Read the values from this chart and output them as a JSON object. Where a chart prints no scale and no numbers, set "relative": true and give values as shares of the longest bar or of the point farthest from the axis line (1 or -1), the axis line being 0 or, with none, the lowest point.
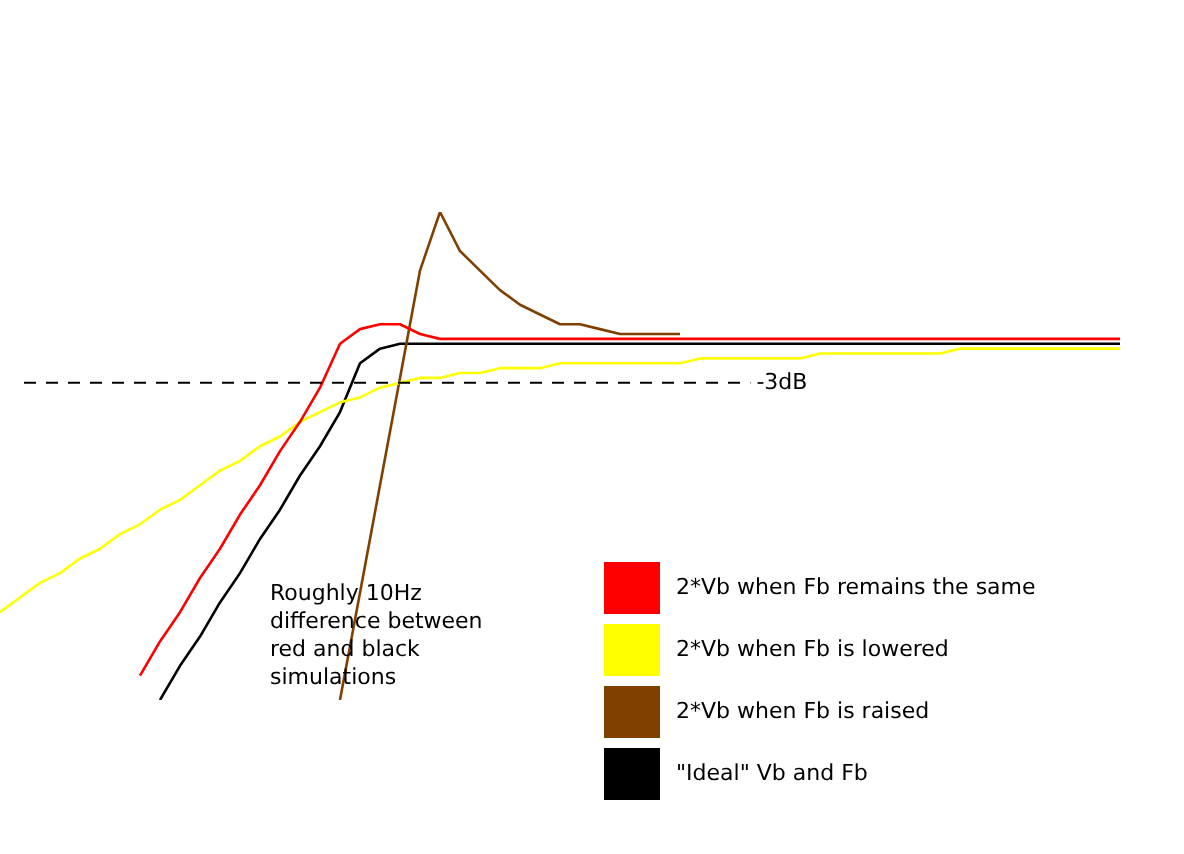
{
  "chart_data": {
    "type": "line",
    "relative": true,
    "marker": "none",
    "legend": "bottom right",
    "categories": [
      null,
      null,
      null,
      null,
      null,
      null,
      null,
      null,
      null,
      null,
      null,
      null,
      null,
      null,
      null,
      null,
      null,
      null,
      null,
      null,
      null,
      null,
      null,
      null,
      null,
      null,
      null,
      null,
      null,
      null,
      null,
      null,
      null,
      null,
      null,
      null,
      null,
      null,
      null,
      null,
      null,
      null,
      null,
      null,
      null,
      null,
      null,
      null,
      null,
      null,
      null,
      null,
      null,
      null,
      null,
      null,
      null
    ],
    "series": [
      {
        "name": "2*Vb when Fb remains the same",
        "color": "#ff0000",
        "values": [
          null,
          null,
          null,
          null,
          null,
          null,
          null,
          0.05,
          0.12,
          0.18,
          0.25,
          0.31,
          0.38,
          0.44,
          0.51,
          0.57,
          0.64,
          0.73,
          0.76,
          0.77,
          0.77,
          0.75,
          0.74,
          0.74,
          0.74,
          0.74,
          0.74,
          0.74,
          0.74,
          0.74,
          0.74,
          0.74,
          0.74,
          0.74,
          0.74,
          0.74,
          0.74,
          0.74,
          0.74,
          0.74,
          0.74,
          0.74,
          0.74,
          0.74,
          0.74,
          0.74,
          0.74,
          0.74,
          0.74,
          0.74,
          0.74,
          0.74,
          0.74,
          0.74,
          0.74,
          0.74,
          0.74
        ]
      },
      {
        "name": "2*Vb when Fb is lowered",
        "color": "#ffff00",
        "values": [
          0.18,
          0.21,
          0.24,
          0.26,
          0.29,
          0.31,
          0.34,
          0.36,
          0.39,
          0.41,
          0.44,
          0.47,
          0.49,
          0.52,
          0.54,
          0.57,
          0.59,
          0.61,
          0.62,
          0.64,
          0.65,
          0.66,
          0.66,
          0.67,
          0.67,
          0.68,
          0.68,
          0.68,
          0.69,
          0.69,
          0.69,
          0.69,
          0.69,
          0.69,
          0.69,
          0.7,
          0.7,
          0.7,
          0.7,
          0.7,
          0.7,
          0.71,
          0.71,
          0.71,
          0.71,
          0.71,
          0.71,
          0.71,
          0.72,
          0.72,
          0.72,
          0.72,
          0.72,
          0.72,
          0.72,
          0.72,
          0.72
        ]
      },
      {
        "name": "2*Vb when Fb is raised",
        "color": "#804000",
        "values": [
          null,
          null,
          null,
          null,
          null,
          null,
          null,
          null,
          null,
          null,
          null,
          null,
          null,
          null,
          null,
          null,
          null,
          0.0,
          0.22,
          0.44,
          0.66,
          0.88,
          1.0,
          0.92,
          0.88,
          0.84,
          0.81,
          0.79,
          0.77,
          0.77,
          0.76,
          0.75,
          0.75,
          0.75,
          0.75,
          null,
          null,
          null,
          null,
          null,
          null,
          null,
          null,
          null,
          null,
          null,
          null,
          null,
          null,
          null,
          null,
          null,
          null,
          null,
          null,
          null,
          null
        ]
      },
      {
        "name": "\"Ideal\" Vb and Fb",
        "color": "#000000",
        "values": [
          null,
          null,
          null,
          null,
          null,
          null,
          null,
          null,
          0.0,
          0.07,
          0.13,
          0.2,
          0.26,
          0.33,
          0.39,
          0.46,
          0.52,
          0.59,
          0.69,
          0.72,
          0.73,
          0.73,
          0.73,
          0.73,
          0.73,
          0.73,
          0.73,
          0.73,
          0.73,
          0.73,
          0.73,
          0.73,
          0.73,
          0.73,
          0.73,
          0.73,
          0.73,
          0.73,
          0.73,
          0.73,
          0.73,
          0.73,
          0.73,
          0.73,
          0.73,
          0.73,
          0.73,
          0.73,
          0.73,
          0.73,
          0.73,
          0.73,
          0.73,
          0.73,
          0.73,
          0.73,
          0.73
        ]
      }
    ],
    "ref_lines": [
      {
        "axis": "y",
        "value": 0.65,
        "label": "-3dB",
        "color": "#000000",
        "line_style": "dashed"
      }
    ],
    "annotations": [
      "Roughly 10Hz difference between red and black simulations"
    ]
  }
}
